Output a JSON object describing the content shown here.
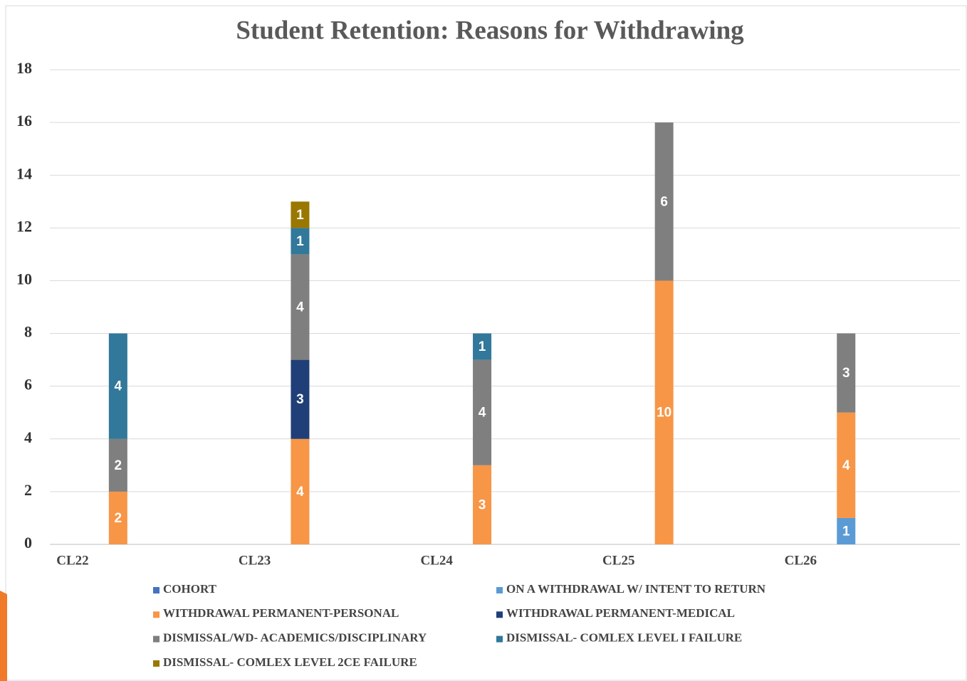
{
  "chart_data": {
    "type": "stacked_bar",
    "title": "Student Retention: Reasons for Withdrawing",
    "categories": [
      "CL22",
      "CL23",
      "CL24",
      "CL25",
      "CL26"
    ],
    "series": [
      {
        "name": "COHORT",
        "color": "#4472c4",
        "values": [
          null,
          null,
          null,
          null,
          null
        ]
      },
      {
        "name": "ON A WITHDRAWAL W/ INTENT TO RETURN",
        "color": "#5b9bd5",
        "values": [
          null,
          null,
          null,
          null,
          1
        ]
      },
      {
        "name": "WITHDRAWAL PERMANENT-PERSONAL",
        "color": "#f79646",
        "values": [
          2,
          4,
          3,
          10,
          4
        ]
      },
      {
        "name": "WITHDRAWAL PERMANENT-MEDICAL",
        "color": "#203f78",
        "values": [
          null,
          3,
          null,
          null,
          null
        ]
      },
      {
        "name": "DISMISSAL/WD- ACADEMICS/DISCIPLINARY",
        "color": "#7f7f7f",
        "values": [
          2,
          4,
          4,
          6,
          3
        ]
      },
      {
        "name": "DISMISSAL- COMLEX LEVEL I FAILURE",
        "color": "#31789a",
        "values": [
          4,
          1,
          1,
          null,
          null
        ]
      },
      {
        "name": "DISMISSAL- COMLEX LEVEL 2CE FAILURE",
        "color": "#9a7700",
        "values": [
          null,
          1,
          null,
          null,
          null
        ]
      }
    ],
    "ylim": [
      0,
      18
    ],
    "yticks": [
      0,
      2,
      4,
      6,
      8,
      10,
      12,
      14,
      16,
      18
    ],
    "grid": true
  }
}
